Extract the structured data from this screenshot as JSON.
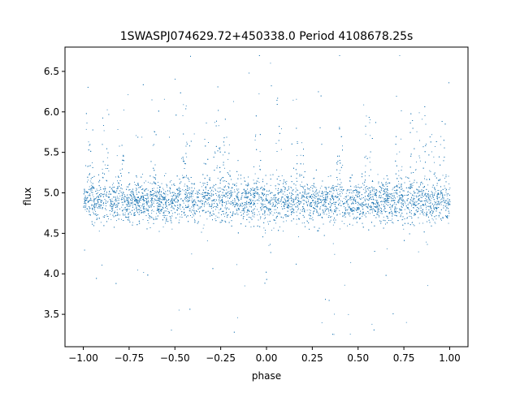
{
  "chart_data": {
    "type": "scatter",
    "title": "1SWASPJ074629.72+450338.0 Period 4108678.25s",
    "xlabel": "phase",
    "ylabel": "flux",
    "xlim": [
      -1.1,
      1.1
    ],
    "ylim": [
      3.1,
      6.8
    ],
    "x_ticks": [
      -1.0,
      -0.75,
      -0.5,
      -0.25,
      0.0,
      0.25,
      0.5,
      0.75,
      1.0
    ],
    "x_tick_labels": [
      "−1.00",
      "−0.75",
      "−0.50",
      "−0.25",
      "0.00",
      "0.25",
      "0.50",
      "0.75",
      "1.00"
    ],
    "y_ticks": [
      3.5,
      4.0,
      4.5,
      5.0,
      5.5,
      6.0,
      6.5
    ],
    "y_tick_labels": [
      "3.5",
      "4.0",
      "4.5",
      "5.0",
      "5.5",
      "6.0",
      "6.5"
    ],
    "grid": false,
    "legend": "none",
    "point_color": "#1f77b4",
    "series": [
      {
        "x_range": [
          -1.0,
          1.0
        ],
        "baseline_flux": 4.9,
        "core_band": [
          4.6,
          5.2
        ],
        "flux_range": [
          3.25,
          6.7
        ],
        "approx_points": 30000,
        "high_scatter_phases": [
          -0.97,
          -0.88,
          -0.8,
          -0.62,
          -0.45,
          -0.33,
          -0.27,
          -0.22,
          -0.05,
          0.07,
          0.18,
          0.4,
          0.55,
          0.72,
          0.8,
          0.85,
          0.9,
          0.96
        ],
        "low_outlier_phases": [
          -0.62,
          -0.45,
          -0.27,
          0.0,
          0.38,
          0.55,
          0.72,
          0.88,
          0.97
        ]
      }
    ]
  }
}
